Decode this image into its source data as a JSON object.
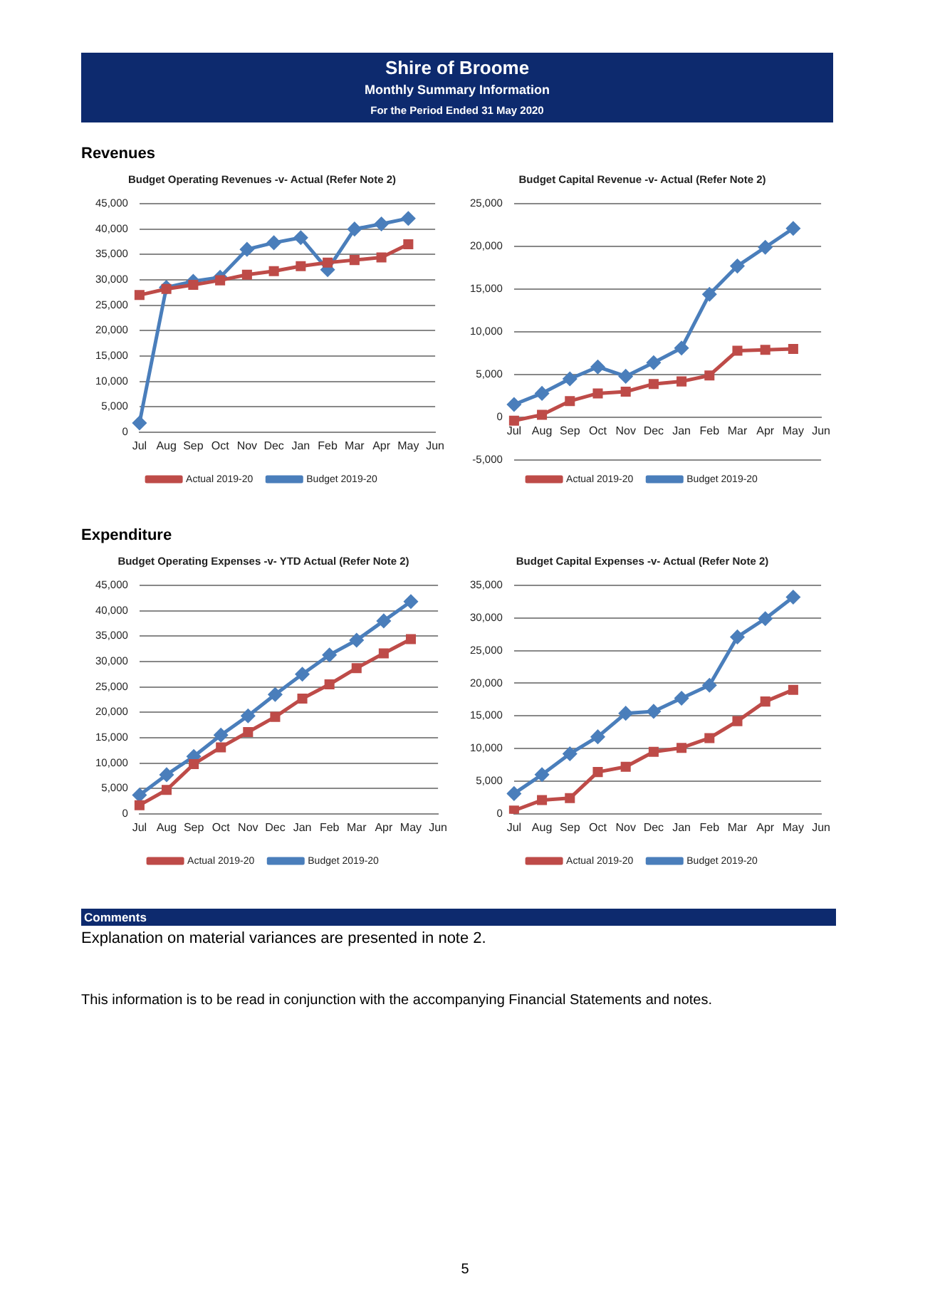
{
  "chart_data": [
    {
      "type": "line",
      "title": "Budget Operating Revenues -v- Actual (Refer Note 2)",
      "annotations": [
        "Shire of Broome",
        "Monthly Summary Information",
        "For the Period Ended 31 May 2020",
        "Revenues"
      ],
      "categories": [
        "Jul",
        "Aug",
        "Sep",
        "Oct",
        "Nov",
        "Dec",
        "Jan",
        "Feb",
        "Mar",
        "Apr",
        "May",
        "Jun"
      ],
      "series": [
        {
          "name": "Budget 2019-20",
          "color": "#4a7ebb",
          "marker": "diamond",
          "values": [
            1800,
            28500,
            29700,
            30500,
            36000,
            37300,
            38300,
            32000,
            40000,
            41000,
            42100,
            null
          ]
        },
        {
          "name": "Actual 2019-20",
          "color": "#be4b48",
          "marker": "square",
          "values": [
            27000,
            28200,
            29000,
            29900,
            31000,
            31700,
            32700,
            33400,
            33900,
            34400,
            37000,
            null
          ]
        }
      ],
      "ylim": [
        0,
        45000
      ],
      "yticks": [
        {
          "value": 0,
          "label": "0"
        },
        {
          "value": 5000,
          "label": "5,000"
        },
        {
          "value": 10000,
          "label": "10,000"
        },
        {
          "value": 15000,
          "label": "15,000"
        },
        {
          "value": 20000,
          "label": "20,000"
        },
        {
          "value": 25000,
          "label": "25,000"
        },
        {
          "value": 30000,
          "label": "30,000"
        },
        {
          "value": 35000,
          "label": "35,000"
        },
        {
          "value": 40000,
          "label": "40,000"
        },
        {
          "value": 45000,
          "label": "45,000"
        }
      ],
      "grid": "y",
      "legend": "bottom"
    },
    {
      "type": "line",
      "title": "Budget Capital Revenue -v- Actual (Refer Note 2)",
      "categories": [
        "Jul",
        "Aug",
        "Sep",
        "Oct",
        "Nov",
        "Dec",
        "Jan",
        "Feb",
        "Mar",
        "Apr",
        "May",
        "Jun"
      ],
      "series": [
        {
          "name": "Budget 2019-20",
          "color": "#4a7ebb",
          "marker": "diamond",
          "values": [
            1500,
            2800,
            4500,
            5900,
            4800,
            6400,
            8100,
            14400,
            17700,
            19900,
            22100,
            null
          ]
        },
        {
          "name": "Actual 2019-20",
          "color": "#be4b48",
          "marker": "square",
          "values": [
            -400,
            300,
            1900,
            2800,
            3000,
            3900,
            4200,
            4900,
            7800,
            7900,
            8000,
            null
          ]
        }
      ],
      "ylim": [
        -5000,
        25000
      ],
      "yticks": [
        {
          "value": -5000,
          "label": "-5,000"
        },
        {
          "value": 0,
          "label": "0"
        },
        {
          "value": 5000,
          "label": "5,000"
        },
        {
          "value": 10000,
          "label": "10,000"
        },
        {
          "value": 15000,
          "label": "15,000"
        },
        {
          "value": 20000,
          "label": "20,000"
        },
        {
          "value": 25000,
          "label": "25,000"
        }
      ],
      "grid": "y",
      "legend": "bottom"
    },
    {
      "type": "line",
      "title": "Budget Operating Expenses -v- YTD Actual (Refer Note 2)",
      "annotations": [
        "Expenditure"
      ],
      "categories": [
        "Jul",
        "Aug",
        "Sep",
        "Oct",
        "Nov",
        "Dec",
        "Jan",
        "Feb",
        "Mar",
        "Apr",
        "May",
        "Jun"
      ],
      "series": [
        {
          "name": "Budget 2019-20",
          "color": "#4a7ebb",
          "marker": "diamond",
          "values": [
            3700,
            7700,
            11300,
            15500,
            19300,
            23500,
            27500,
            31300,
            34200,
            38000,
            41800,
            null
          ]
        },
        {
          "name": "Actual 2019-20",
          "color": "#be4b48",
          "marker": "square",
          "values": [
            1700,
            4700,
            9800,
            13100,
            16100,
            19100,
            22700,
            25500,
            28700,
            31600,
            34400,
            null
          ]
        }
      ],
      "ylim": [
        0,
        45000
      ],
      "yticks": [
        {
          "value": 0,
          "label": "0"
        },
        {
          "value": 5000,
          "label": "5,000"
        },
        {
          "value": 10000,
          "label": "10,000"
        },
        {
          "value": 15000,
          "label": "15,000"
        },
        {
          "value": 20000,
          "label": "20,000"
        },
        {
          "value": 25000,
          "label": "25,000"
        },
        {
          "value": 30000,
          "label": "30,000"
        },
        {
          "value": 35000,
          "label": "35,000"
        },
        {
          "value": 40000,
          "label": "40,000"
        },
        {
          "value": 45000,
          "label": "45,000"
        }
      ],
      "grid": "y",
      "legend": "bottom"
    },
    {
      "type": "line",
      "title": "Budget Capital Expenses -v- Actual (Refer Note 2)",
      "annotations": [
        "Comments",
        "Explanation on material variances are presented in note 2.",
        "This information is to be read in conjunction with the accompanying Financial Statements and notes.",
        "5"
      ],
      "categories": [
        "Jul",
        "Aug",
        "Sep",
        "Oct",
        "Nov",
        "Dec",
        "Jan",
        "Feb",
        "Mar",
        "Apr",
        "May",
        "Jun"
      ],
      "series": [
        {
          "name": "Budget 2019-20",
          "color": "#4a7ebb",
          "marker": "diamond",
          "values": [
            3100,
            6000,
            9200,
            11800,
            15400,
            15700,
            17700,
            19700,
            27100,
            29900,
            33200,
            null
          ]
        },
        {
          "name": "Actual 2019-20",
          "color": "#be4b48",
          "marker": "square",
          "values": [
            500,
            2100,
            2400,
            6400,
            7200,
            9500,
            10100,
            11600,
            14200,
            17200,
            19000,
            null
          ]
        }
      ],
      "ylim": [
        0,
        35000
      ],
      "yticks": [
        {
          "value": 0,
          "label": "0"
        },
        {
          "value": 5000,
          "label": "5,000"
        },
        {
          "value": 10000,
          "label": "10,000"
        },
        {
          "value": 15000,
          "label": "15,000"
        },
        {
          "value": 20000,
          "label": "20,000"
        },
        {
          "value": 25000,
          "label": "25,000"
        },
        {
          "value": 30000,
          "label": "30,000"
        },
        {
          "value": 35000,
          "label": "35,000"
        }
      ],
      "grid": "y",
      "legend": "bottom"
    }
  ]
}
